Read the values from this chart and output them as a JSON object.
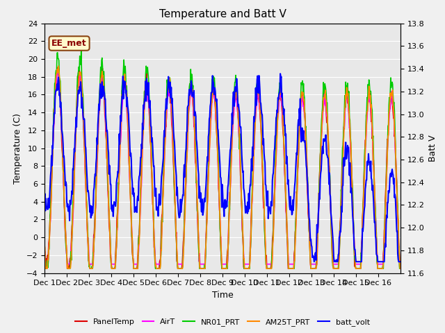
{
  "title": "Temperature and Batt V",
  "xlabel": "Time",
  "ylabel_left": "Temperature (C)",
  "ylabel_right": "Batt V",
  "annotation": "EE_met",
  "ylim_left": [
    -4,
    24
  ],
  "ylim_right": [
    11.6,
    13.8
  ],
  "yticks_left": [
    -4,
    -2,
    0,
    2,
    4,
    6,
    8,
    10,
    12,
    14,
    16,
    18,
    20,
    22,
    24
  ],
  "yticks_right": [
    11.6,
    11.8,
    12.0,
    12.2,
    12.4,
    12.6,
    12.8,
    13.0,
    13.2,
    13.4,
    13.6,
    13.8
  ],
  "xtick_labels": [
    "Dec 1",
    "Dec 2",
    "Dec 3",
    "Dec 4",
    "Dec 5",
    "Dec 6",
    "Dec 7",
    "Dec 8",
    "Dec 9",
    "Dec 10",
    "Dec 11",
    "Dec 12",
    "Dec 13",
    "Dec 14",
    "Dec 15",
    "Dec 16"
  ],
  "series": {
    "PanelTemp": {
      "color": "#dd0000",
      "lw": 1.2
    },
    "AirT": {
      "color": "#ff00ff",
      "lw": 1.2
    },
    "NR01_PRT": {
      "color": "#00cc00",
      "lw": 1.2
    },
    "AM25T_PRT": {
      "color": "#ff8800",
      "lw": 1.2
    },
    "batt_volt": {
      "color": "#0000ff",
      "lw": 1.5
    }
  },
  "bg_color": "#e8e8e8",
  "grid_color": "#ffffff",
  "n_days": 16,
  "pts_per_day": 48
}
